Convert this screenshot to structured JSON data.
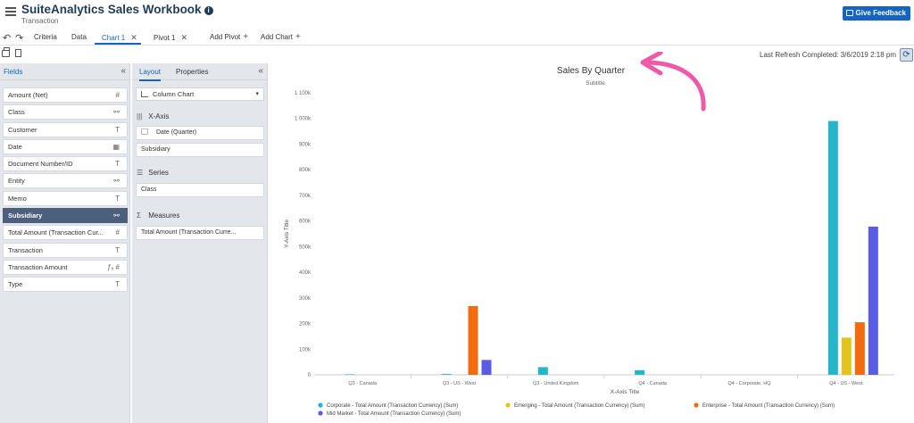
{
  "header": {
    "title": "SuiteAnalytics Sales Workbook",
    "subtitle": "Transaction",
    "info_icon": "i",
    "feedback_label": "Give Feedback"
  },
  "tabs": {
    "undo": "↶",
    "redo": "↷",
    "items": [
      {
        "label": "Criteria"
      },
      {
        "label": "Data"
      },
      {
        "label": "Chart 1",
        "active": true
      },
      {
        "label": "Pivot 1"
      }
    ],
    "close_glyph": "✕",
    "plus_glyph": "+",
    "add_pivot": "Add Pivot",
    "add_chart": "Add Chart"
  },
  "toolbar": {
    "last_refresh": "Last Refresh Completed: 3/6/2019 2:18 pm",
    "refresh_glyph": "⟳"
  },
  "fields_panel": {
    "title": "Fields",
    "collapse_glyph": "«",
    "items": [
      {
        "label": "Amount (Net)",
        "type": "#"
      },
      {
        "label": "Class",
        "type": "⚯"
      },
      {
        "label": "Customer",
        "type": "T"
      },
      {
        "label": "Date",
        "type": "▦"
      },
      {
        "label": "Document Number/ID",
        "type": "T"
      },
      {
        "label": "Entity",
        "type": "⚯"
      },
      {
        "label": "Memo",
        "type": "T"
      },
      {
        "label": "Subsidiary",
        "type": "⚯",
        "selected": true
      },
      {
        "label": "Total Amount (Transaction Cur...",
        "type": "#"
      },
      {
        "label": "Transaction",
        "type": "T"
      },
      {
        "label": "Transaction Amount",
        "type": "ƒₓ #"
      },
      {
        "label": "Type",
        "type": "T"
      }
    ]
  },
  "layout_panel": {
    "tab_layout": "Layout",
    "tab_properties": "Properties",
    "collapse_glyph": "«",
    "chart_type": "Column Chart",
    "caret": "▾",
    "xaxis_title": "X-Axis",
    "xaxis_icon": "|||",
    "xaxis_items": [
      "Date (Quarter)",
      "Subsidiary"
    ],
    "series_title": "Series",
    "series_icon": "☰",
    "series_items": [
      "Class"
    ],
    "measures_title": "Measures",
    "measures_icon": "Σ",
    "measures_items": [
      "Total Amount (Transaction Curre..."
    ]
  },
  "chart_data": {
    "type": "bar",
    "title": "Sales By Quarter",
    "subtitle": "Subtitle",
    "xlabel": "X-Axis Title",
    "ylabel": "Y-Axis Title",
    "ylim": [
      0,
      1100000
    ],
    "yticks": [
      0,
      100000,
      200000,
      300000,
      400000,
      500000,
      600000,
      700000,
      800000,
      900000,
      1000000,
      1100000
    ],
    "ytick_labels": [
      "0",
      "100k",
      "200k",
      "300k",
      "400k",
      "500k",
      "600k",
      "700k",
      "800k",
      "900k",
      "1 000k",
      "1 100k"
    ],
    "categories": [
      "Q3 - Canada",
      "Q3 - US - West",
      "Q3 - United Kingdom",
      "Q4 - Canada",
      "Q4 - Corporate, HQ",
      "Q4 - US - West"
    ],
    "series": [
      {
        "name": "Corporate - Total Amount (Transaction Currency) (Sum)",
        "color": "#26b5c9",
        "values": [
          2000,
          3000,
          30000,
          18000,
          0,
          990000
        ]
      },
      {
        "name": "Emerging - Total Amount (Transaction Currency) (Sum)",
        "color": "#e3c31c",
        "values": [
          0,
          0,
          0,
          0,
          0,
          145000
        ]
      },
      {
        "name": "Enterprise - Total Amount (Transaction Currency) (Sum)",
        "color": "#f26b0f",
        "values": [
          0,
          268000,
          0,
          0,
          0,
          205000
        ]
      },
      {
        "name": "Mid Market - Total Amount (Transaction Currency) (Sum)",
        "color": "#5b5ce6",
        "values": [
          0,
          58000,
          0,
          0,
          0,
          578000
        ]
      }
    ],
    "legend_position": "bottom",
    "grid": false
  },
  "annotation": {
    "arrow_color": "#ef5aa8"
  }
}
